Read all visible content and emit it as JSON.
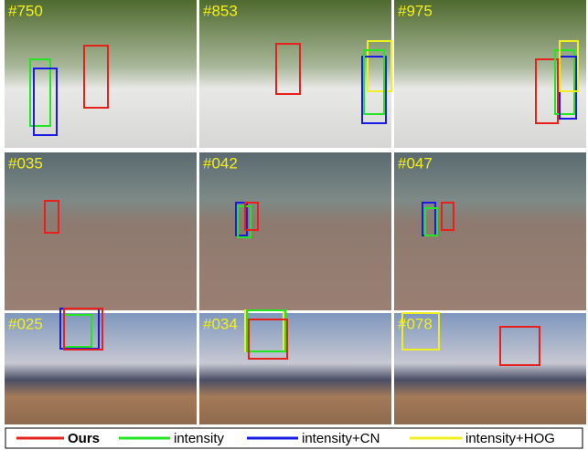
{
  "panels": [
    {
      "frame": "#750"
    },
    {
      "frame": "#853"
    },
    {
      "frame": "#975"
    },
    {
      "frame": "#035"
    },
    {
      "frame": "#042"
    },
    {
      "frame": "#047"
    },
    {
      "frame": "#025"
    },
    {
      "frame": "#034"
    },
    {
      "frame": "#078"
    }
  ],
  "legend": [
    {
      "label": "Ours",
      "color": "#e8201c"
    },
    {
      "label": "intensity",
      "color": "#22e622"
    },
    {
      "label": "intensity+CN",
      "color": "#1a1ae6"
    },
    {
      "label": "intensity+HOG",
      "color": "#f0f020"
    }
  ]
}
